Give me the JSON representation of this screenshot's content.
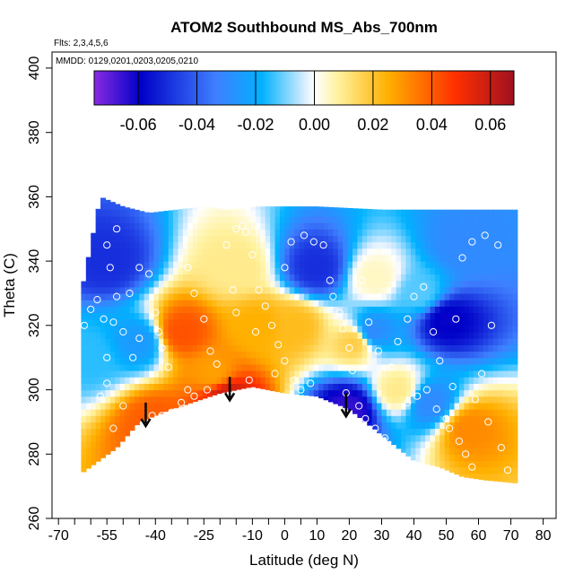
{
  "chart_data": {
    "type": "heatmap",
    "title": "ATOM2 Southbound MS_Abs_700nm",
    "flights_note": "Flts: 2,3,4,5,6",
    "dates_note": "MMDD: 0129,0201,0203,0205,0210",
    "xlabel": "Latitude (deg N)",
    "ylabel": "Theta (C)",
    "xlim": [
      -72,
      84
    ],
    "ylim": [
      260,
      405
    ],
    "x_ticks": [
      -70,
      -55,
      -40,
      -25,
      -10,
      0,
      10,
      20,
      30,
      40,
      50,
      60,
      70,
      80
    ],
    "x_tick_labels": [
      "-70",
      "-55",
      "-40",
      "-25",
      "-10",
      "0",
      "10",
      "20",
      "30",
      "40",
      "50",
      "60",
      "70",
      "80"
    ],
    "x_minor_ticks": [
      -65,
      -60,
      -50,
      -45,
      -35,
      -30,
      -20,
      -15,
      -5,
      5
    ],
    "y_ticks": [
      260,
      280,
      300,
      320,
      340,
      360,
      380,
      400
    ],
    "y_tick_labels": [
      "260",
      "280",
      "300",
      "320",
      "340",
      "360",
      "380",
      "400"
    ],
    "colorbar": {
      "range": [
        -0.075,
        0.068
      ],
      "ticks": [
        -0.06,
        -0.04,
        -0.02,
        0.0,
        0.02,
        0.04,
        0.06
      ],
      "tick_labels": [
        "-0.06",
        "-0.04",
        "-0.02",
        "0.00",
        "0.02",
        "0.04",
        "0.06"
      ],
      "colors": [
        "#8a2be2",
        "#0000c8",
        "#3f7fff",
        "#00b2ff",
        "#d6ecff",
        "#ffffff",
        "#fff2a0",
        "#ffb000",
        "#ff3000",
        "#a01020"
      ]
    },
    "field_top_boundary": [
      [
        -63,
        330
      ],
      [
        -59,
        350
      ],
      [
        -57,
        360
      ],
      [
        -50,
        357
      ],
      [
        -42,
        355
      ],
      [
        -25,
        357
      ],
      [
        -18,
        356
      ],
      [
        -8,
        357
      ],
      [
        10,
        357
      ],
      [
        30,
        356
      ],
      [
        40,
        356
      ],
      [
        55,
        356
      ],
      [
        58,
        356
      ]
    ],
    "field_bottom_boundary": [
      [
        -63,
        274
      ],
      [
        -52,
        282
      ],
      [
        -45,
        290
      ],
      [
        -35,
        294
      ],
      [
        -20,
        299
      ],
      [
        -10,
        301
      ],
      [
        0,
        299
      ],
      [
        10,
        298
      ],
      [
        20,
        294
      ],
      [
        30,
        286
      ],
      [
        40,
        278
      ],
      [
        48,
        276
      ],
      [
        55,
        273
      ],
      [
        62,
        272
      ],
      [
        72,
        271
      ]
    ],
    "field_anomalies": [
      {
        "lat": -32,
        "theta": 318,
        "value": 0.042
      },
      {
        "lat": -22,
        "theta": 305,
        "value": 0.028
      },
      {
        "lat": -18,
        "theta": 298,
        "value": 0.06
      },
      {
        "lat": -8,
        "theta": 320,
        "value": 0.025
      },
      {
        "lat": 3,
        "theta": 320,
        "value": 0.022
      },
      {
        "lat": -15,
        "theta": 338,
        "value": 0.01
      },
      {
        "lat": -45,
        "theta": 315,
        "value": -0.025
      },
      {
        "lat": -55,
        "theta": 340,
        "value": -0.05
      },
      {
        "lat": -60,
        "theta": 310,
        "value": -0.015
      },
      {
        "lat": 10,
        "theta": 338,
        "value": -0.05
      },
      {
        "lat": 20,
        "theta": 294,
        "value": -0.065
      },
      {
        "lat": 22,
        "theta": 315,
        "value": 0.018
      },
      {
        "lat": 27,
        "theta": 318,
        "value": -0.03
      },
      {
        "lat": 28,
        "theta": 335,
        "value": 0.005
      },
      {
        "lat": 42,
        "theta": 330,
        "value": -0.012
      },
      {
        "lat": 50,
        "theta": 322,
        "value": -0.06
      },
      {
        "lat": 45,
        "theta": 296,
        "value": -0.03
      },
      {
        "lat": 57,
        "theta": 288,
        "value": 0.032
      },
      {
        "lat": 55,
        "theta": 345,
        "value": -0.03
      },
      {
        "lat": -40,
        "theta": 290,
        "value": 0.04
      },
      {
        "lat": 35,
        "theta": 300,
        "value": 0.01
      }
    ],
    "arrows": [
      {
        "lat": -43,
        "theta_top": 296,
        "theta_bottom": 289
      },
      {
        "lat": -17,
        "theta_top": 304,
        "theta_bottom": 297
      },
      {
        "lat": 19,
        "theta_top": 299,
        "theta_bottom": 292
      }
    ],
    "sample_points": [
      [
        -62,
        320
      ],
      [
        -60,
        325
      ],
      [
        -58,
        328
      ],
      [
        -56,
        322
      ],
      [
        -53,
        321
      ],
      [
        -52,
        329
      ],
      [
        -50,
        318
      ],
      [
        -55,
        310
      ],
      [
        -55,
        302
      ],
      [
        -57,
        298
      ],
      [
        -53,
        288
      ],
      [
        -50,
        295
      ],
      [
        -48,
        330
      ],
      [
        -45,
        338
      ],
      [
        -42,
        336
      ],
      [
        -40,
        324
      ],
      [
        -39,
        318
      ],
      [
        -38,
        313
      ],
      [
        -36,
        307
      ],
      [
        -47,
        310
      ],
      [
        -45,
        316
      ],
      [
        -54,
        338
      ],
      [
        -55,
        345
      ],
      [
        -52,
        350
      ],
      [
        -30,
        338
      ],
      [
        -28,
        330
      ],
      [
        -25,
        322
      ],
      [
        -23,
        312
      ],
      [
        -21,
        308
      ],
      [
        -24,
        300
      ],
      [
        -28,
        298
      ],
      [
        -32,
        296
      ],
      [
        -35,
        293
      ],
      [
        -41,
        292
      ],
      [
        -15,
        350
      ],
      [
        -13,
        351
      ],
      [
        -12,
        349
      ],
      [
        -10,
        342
      ],
      [
        -8,
        331
      ],
      [
        -6,
        326
      ],
      [
        -4,
        320
      ],
      [
        -2,
        314
      ],
      [
        0,
        309
      ],
      [
        3,
        303
      ],
      [
        5,
        300
      ],
      [
        8,
        302
      ],
      [
        -18,
        345
      ],
      [
        -16,
        331
      ],
      [
        -15,
        324
      ],
      [
        -9,
        318
      ],
      [
        -11,
        303
      ],
      [
        -3,
        305
      ],
      [
        0,
        338
      ],
      [
        2,
        346
      ],
      [
        6,
        348
      ],
      [
        9,
        346
      ],
      [
        12,
        345
      ],
      [
        14,
        334
      ],
      [
        15,
        329
      ],
      [
        17,
        324
      ],
      [
        18,
        319
      ],
      [
        20,
        313
      ],
      [
        21,
        306
      ],
      [
        19,
        299
      ],
      [
        23,
        295
      ],
      [
        25,
        291
      ],
      [
        28,
        288
      ],
      [
        31,
        285
      ],
      [
        24,
        334
      ],
      [
        26,
        321
      ],
      [
        29,
        312
      ],
      [
        33,
        307
      ],
      [
        35,
        315
      ],
      [
        38,
        322
      ],
      [
        40,
        329
      ],
      [
        43,
        332
      ],
      [
        46,
        318
      ],
      [
        48,
        309
      ],
      [
        52,
        301
      ],
      [
        50,
        291
      ],
      [
        54,
        284
      ],
      [
        56,
        280
      ],
      [
        58,
        276
      ],
      [
        51,
        288
      ],
      [
        47,
        294
      ],
      [
        44,
        300
      ],
      [
        41,
        298
      ],
      [
        38,
        296
      ],
      [
        53,
        322
      ],
      [
        55,
        341
      ],
      [
        58,
        346
      ],
      [
        62,
        348
      ],
      [
        66,
        345
      ],
      [
        64,
        320
      ],
      [
        61,
        305
      ],
      [
        59,
        297
      ],
      [
        63,
        290
      ],
      [
        67,
        282
      ],
      [
        69,
        275
      ],
      [
        -35,
        285
      ],
      [
        -38,
        292
      ],
      [
        -30,
        300
      ]
    ],
    "grid": false,
    "legend": "colorbar top"
  }
}
